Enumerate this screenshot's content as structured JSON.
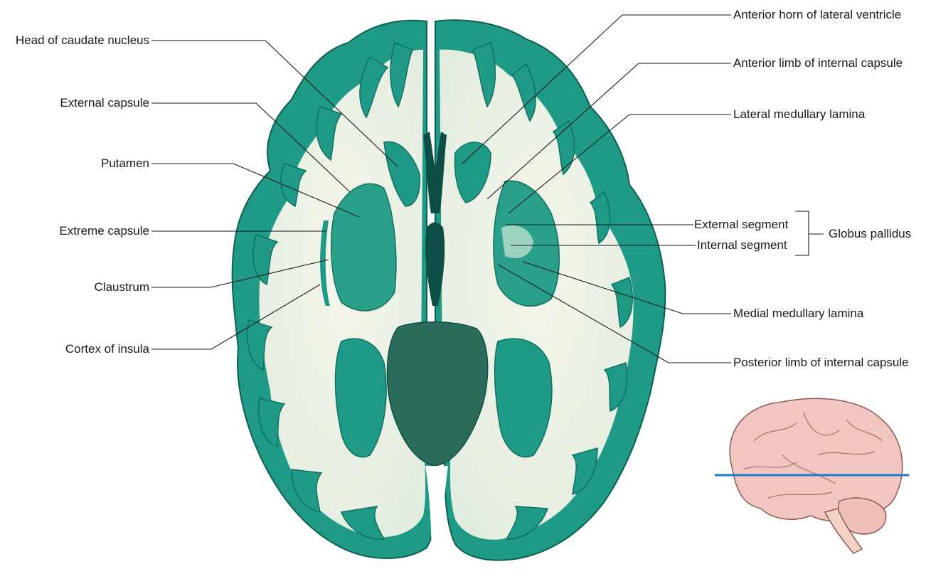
{
  "labels_left": [
    {
      "id": "head-caudate",
      "text": "Head of caudate nucleus"
    },
    {
      "id": "external-capsule",
      "text": "External capsule"
    },
    {
      "id": "putamen",
      "text": "Putamen"
    },
    {
      "id": "extreme-capsule",
      "text": "Extreme capsule"
    },
    {
      "id": "claustrum",
      "text": "Claustrum"
    },
    {
      "id": "cortex-insula",
      "text": "Cortex of insula"
    }
  ],
  "labels_right": [
    {
      "id": "anterior-horn",
      "text": "Anterior horn of lateral ventricle"
    },
    {
      "id": "anterior-limb",
      "text": "Anterior limb of internal capsule"
    },
    {
      "id": "lateral-lamina",
      "text": "Lateral medullary lamina"
    },
    {
      "id": "external-segment",
      "text": "External segment"
    },
    {
      "id": "internal-segment",
      "text": "Internal segment"
    },
    {
      "id": "globus-pallidus",
      "text": "Globus pallidus"
    },
    {
      "id": "medial-lamina",
      "text": "Medial medullary lamina"
    },
    {
      "id": "posterior-limb",
      "text": "Posterior limb of internal capsule"
    }
  ],
  "colors": {
    "grey_matter": "#1f9a86",
    "grey_matter_dark": "#0f6f61",
    "white_matter": "#eef3e6",
    "inset_brain": "#f2c6c0",
    "inset_outline": "#8a5a55",
    "plane_line": "#1e7fc6"
  },
  "icons": {
    "inset": "brain-lateral-view-icon"
  }
}
